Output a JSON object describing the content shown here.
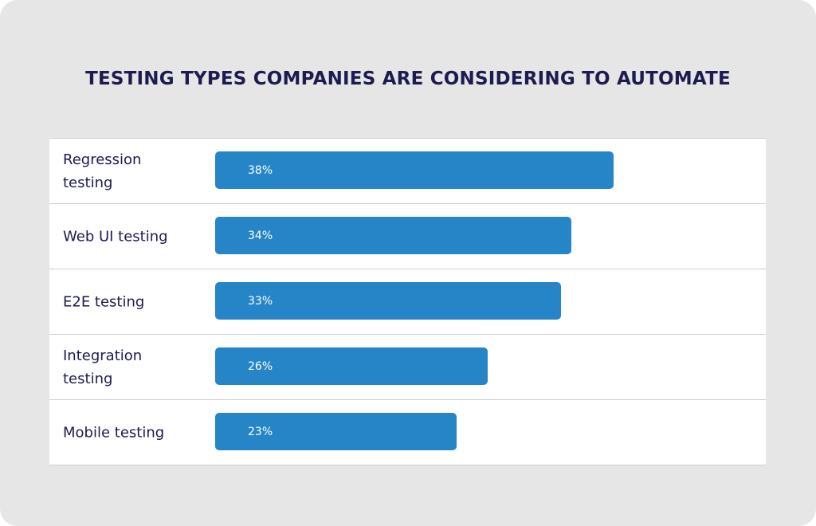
{
  "chart_data": {
    "type": "bar",
    "orientation": "horizontal",
    "title": "TESTING TYPES COMPANIES ARE CONSIDERING TO AUTOMATE",
    "categories": [
      "Regression testing",
      "Web UI testing",
      "E2E testing",
      "Integration testing",
      "Mobile testing"
    ],
    "values": [
      38,
      34,
      33,
      26,
      23
    ],
    "value_labels": [
      "38%",
      "34%",
      "33%",
      "26%",
      "23%"
    ],
    "color": "#2585c7"
  }
}
